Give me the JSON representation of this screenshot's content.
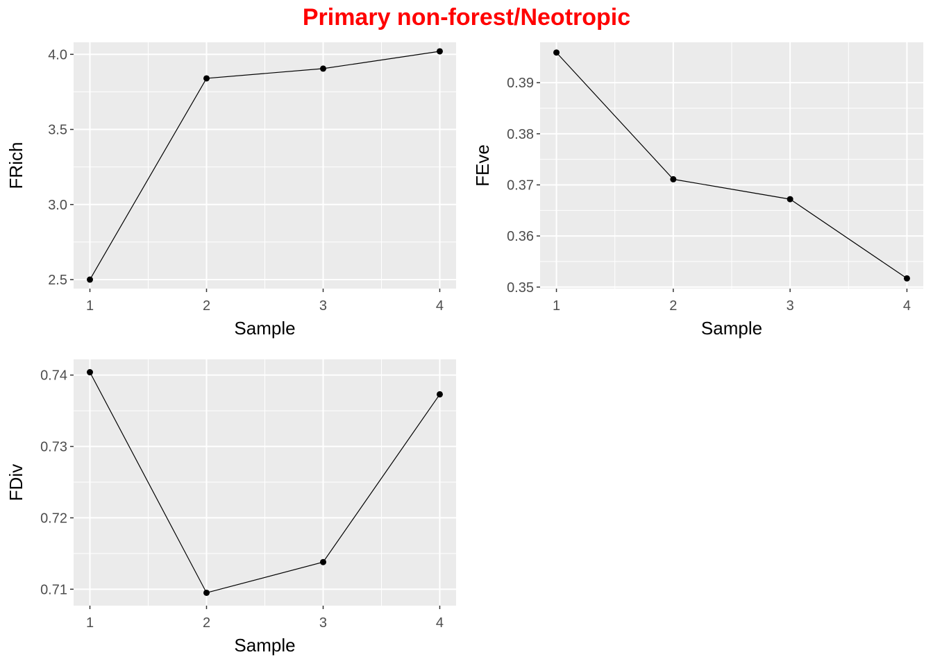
{
  "title": "Primary non-forest/Neotropic",
  "colors": {
    "title": "#ff0000",
    "panel": "#ebebeb",
    "grid": "#ffffff",
    "line": "#000000",
    "tick_text": "#4d4d4d"
  },
  "chart_data": [
    {
      "type": "line",
      "xlabel": "Sample",
      "ylabel": "FRich",
      "x": [
        1,
        2,
        3,
        4
      ],
      "values": [
        2.5,
        3.84,
        3.905,
        4.02
      ],
      "xlim": [
        0.86,
        4.14
      ],
      "ylim": [
        2.44,
        4.08
      ],
      "xticks": [
        1,
        2,
        3,
        4
      ],
      "xtick_labels": [
        "1",
        "2",
        "3",
        "4"
      ],
      "yticks": [
        2.5,
        3.0,
        3.5,
        4.0
      ],
      "ytick_labels": [
        "2.5",
        "3.0",
        "3.5",
        "4.0"
      ],
      "grid": true
    },
    {
      "type": "line",
      "xlabel": "Sample",
      "ylabel": "FEve",
      "x": [
        1,
        2,
        3,
        4
      ],
      "values": [
        0.3959,
        0.3711,
        0.3672,
        0.3517
      ],
      "xlim": [
        0.86,
        4.14
      ],
      "ylim": [
        0.3497,
        0.3979
      ],
      "xticks": [
        1,
        2,
        3,
        4
      ],
      "xtick_labels": [
        "1",
        "2",
        "3",
        "4"
      ],
      "yticks": [
        0.35,
        0.36,
        0.37,
        0.38,
        0.39
      ],
      "ytick_labels": [
        "0.35",
        "0.36",
        "0.37",
        "0.38",
        "0.39"
      ],
      "grid": true
    },
    {
      "type": "line",
      "xlabel": "Sample",
      "ylabel": "FDiv",
      "x": [
        1,
        2,
        3,
        4
      ],
      "values": [
        0.7404,
        0.7095,
        0.7138,
        0.7373
      ],
      "xlim": [
        0.86,
        4.14
      ],
      "ylim": [
        0.7077,
        0.7422
      ],
      "xticks": [
        1,
        2,
        3,
        4
      ],
      "xtick_labels": [
        "1",
        "2",
        "3",
        "4"
      ],
      "yticks": [
        0.71,
        0.72,
        0.73,
        0.74
      ],
      "ytick_labels": [
        "0.71",
        "0.72",
        "0.73",
        "0.74"
      ],
      "grid": true
    }
  ]
}
